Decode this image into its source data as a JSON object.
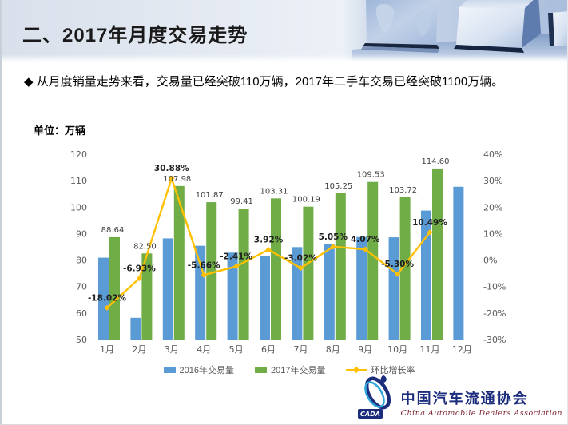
{
  "slide": {
    "title": "二、2017年月度交易走势",
    "bullet": "◆ 从月度销量走势来看，交易量已经突破110万辆，2017年二手车交易已经突破1100万辆。",
    "unit_label": "单位：万辆"
  },
  "chart_data": {
    "type": "bar",
    "subtype": "combo-bar-line",
    "categories": [
      "1月",
      "2月",
      "3月",
      "4月",
      "5月",
      "6月",
      "7月",
      "8月",
      "9月",
      "10月",
      "11月",
      "12月"
    ],
    "series": [
      {
        "name": "2016年交易量",
        "type": "bar",
        "color": "#5B9BD5",
        "values": [
          80.9,
          58.2,
          88.2,
          85.4,
          82.8,
          81.5,
          84.9,
          86.2,
          88.7,
          88.6,
          98.7,
          107.7
        ],
        "note": "values estimated from bar heights; this series has no data labels in the chart"
      },
      {
        "name": "2017年交易量",
        "type": "bar",
        "color": "#70AD47",
        "values": [
          88.64,
          82.5,
          107.98,
          101.87,
          99.41,
          103.31,
          100.19,
          105.25,
          109.53,
          103.72,
          114.6,
          null
        ],
        "labels": [
          "88.64",
          "82.50",
          "107.98",
          "101.87",
          "99.41",
          "103.31",
          "100.19",
          "105.25",
          "109.53",
          "103.72",
          "114.60",
          null
        ]
      },
      {
        "name": "环比增长率",
        "type": "line",
        "axis": "right",
        "color": "#FFC000",
        "values": [
          -18.02,
          -6.93,
          30.88,
          -5.66,
          -2.41,
          3.92,
          -3.02,
          5.05,
          4.07,
          -5.3,
          10.49,
          null
        ],
        "labels": [
          "-18.02%",
          "-6.93%",
          "30.88%",
          "-5.66%",
          "-2.41%",
          "3.92%",
          "-3.02%",
          "5.05%",
          "4.07%",
          "-5.30%",
          "10.49%",
          null
        ]
      }
    ],
    "left_axis": {
      "min": 50,
      "max": 120,
      "step": 10
    },
    "right_axis": {
      "min": -30,
      "max": 40,
      "step": 10,
      "suffix": "%"
    },
    "grid": false,
    "legend_position": "bottom",
    "ylabel": "单位：万辆",
    "xlabel": ""
  },
  "logo": {
    "cn": "中国汽车流通协会",
    "en": "China Automobile Dealers Association",
    "mark": "CADA"
  },
  "colors": {
    "bar_2016": "#5B9BD5",
    "bar_2017": "#70AD47",
    "growth_line": "#FFC000",
    "axis_text": "#595959",
    "header_navy": "#1E3150"
  }
}
